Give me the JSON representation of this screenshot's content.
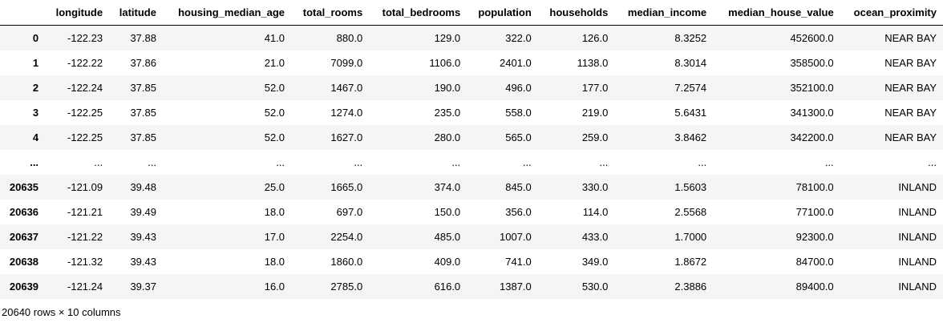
{
  "colors": {
    "stripe": "#f5f5f5",
    "header_border": "#000000",
    "text": "#000000"
  },
  "table": {
    "index_header": "",
    "columns": [
      "longitude",
      "latitude",
      "housing_median_age",
      "total_rooms",
      "total_bedrooms",
      "population",
      "households",
      "median_income",
      "median_house_value",
      "ocean_proximity"
    ],
    "rows": [
      {
        "index": "0",
        "cells": [
          "-122.23",
          "37.88",
          "41.0",
          "880.0",
          "129.0",
          "322.0",
          "126.0",
          "8.3252",
          "452600.0",
          "NEAR BAY"
        ]
      },
      {
        "index": "1",
        "cells": [
          "-122.22",
          "37.86",
          "21.0",
          "7099.0",
          "1106.0",
          "2401.0",
          "1138.0",
          "8.3014",
          "358500.0",
          "NEAR BAY"
        ]
      },
      {
        "index": "2",
        "cells": [
          "-122.24",
          "37.85",
          "52.0",
          "1467.0",
          "190.0",
          "496.0",
          "177.0",
          "7.2574",
          "352100.0",
          "NEAR BAY"
        ]
      },
      {
        "index": "3",
        "cells": [
          "-122.25",
          "37.85",
          "52.0",
          "1274.0",
          "235.0",
          "558.0",
          "219.0",
          "5.6431",
          "341300.0",
          "NEAR BAY"
        ]
      },
      {
        "index": "4",
        "cells": [
          "-122.25",
          "37.85",
          "52.0",
          "1627.0",
          "280.0",
          "565.0",
          "259.0",
          "3.8462",
          "342200.0",
          "NEAR BAY"
        ]
      },
      {
        "index": "...",
        "cells": [
          "...",
          "...",
          "...",
          "...",
          "...",
          "...",
          "...",
          "...",
          "...",
          "..."
        ]
      },
      {
        "index": "20635",
        "cells": [
          "-121.09",
          "39.48",
          "25.0",
          "1665.0",
          "374.0",
          "845.0",
          "330.0",
          "1.5603",
          "78100.0",
          "INLAND"
        ]
      },
      {
        "index": "20636",
        "cells": [
          "-121.21",
          "39.49",
          "18.0",
          "697.0",
          "150.0",
          "356.0",
          "114.0",
          "2.5568",
          "77100.0",
          "INLAND"
        ]
      },
      {
        "index": "20637",
        "cells": [
          "-121.22",
          "39.43",
          "17.0",
          "2254.0",
          "485.0",
          "1007.0",
          "433.0",
          "1.7000",
          "92300.0",
          "INLAND"
        ]
      },
      {
        "index": "20638",
        "cells": [
          "-121.32",
          "39.43",
          "18.0",
          "1860.0",
          "409.0",
          "741.0",
          "349.0",
          "1.8672",
          "84700.0",
          "INLAND"
        ]
      },
      {
        "index": "20639",
        "cells": [
          "-121.24",
          "39.37",
          "16.0",
          "2785.0",
          "616.0",
          "1387.0",
          "530.0",
          "2.3886",
          "89400.0",
          "INLAND"
        ]
      }
    ],
    "footer": "20640 rows × 10 columns"
  }
}
